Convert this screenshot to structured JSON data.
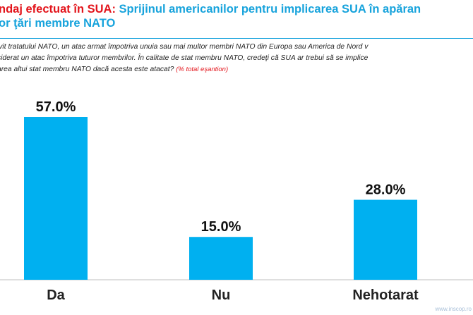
{
  "header": {
    "title_prefix": "ndaj efectuat în SUA:",
    "title_main": "Sprijinul americanilor pentru implicarea SUA în apăran",
    "title_cont": "or ţări membre NATO"
  },
  "question": {
    "line1": "ivit tratatului NATO, un atac armat împotriva unuia sau mai multor membri NATO din Europa sau America de Nord v",
    "line2": "siderat un atac împotriva tuturor membrilor. În calitate de stat membru NATO, credeţi că SUA ar trebui să se implice",
    "line3": "area altui stat membru NATO dacă acesta este atacat?",
    "note": "(% total eşantion)"
  },
  "footer": {
    "url": "www.inscop.ro"
  },
  "colors": {
    "bar": "#00b0f0",
    "axis": "#bfbfbf"
  },
  "chart_data": {
    "type": "bar",
    "categories": [
      "Da",
      "Nu",
      "Nehotarat"
    ],
    "values": [
      57.0,
      15.0,
      28.0
    ],
    "data_labels": [
      "57.0%",
      "15.0%",
      "28.0%"
    ],
    "ylim": [
      0,
      100
    ],
    "title": "",
    "xlabel": "",
    "ylabel": ""
  }
}
